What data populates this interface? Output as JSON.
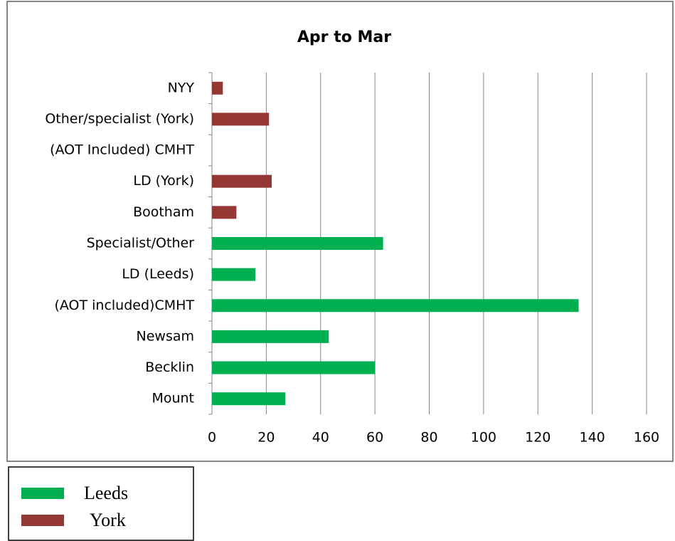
{
  "chart_data": {
    "type": "hbar",
    "title": "Apr to Mar",
    "categories": [
      "Mount",
      "Becklin",
      "Newsam",
      "(AOT included)CMHT",
      "LD (Leeds)",
      "Specialist/Other",
      "Bootham",
      "LD (York)",
      "(AOT Included)   CMHT",
      "Other/specialist (York)",
      "NYY"
    ],
    "series": [
      {
        "name": "Leeds",
        "color": "#00b050",
        "values": [
          27,
          60,
          43,
          135,
          16,
          63,
          null,
          null,
          null,
          null,
          null
        ]
      },
      {
        "name": "York",
        "color": "#953735",
        "values": [
          null,
          null,
          null,
          null,
          null,
          null,
          9,
          22,
          0,
          21,
          4
        ]
      }
    ],
    "xlim": [
      0,
      160
    ],
    "xticks": [
      0,
      20,
      40,
      60,
      80,
      100,
      120,
      140,
      160
    ],
    "grid": true
  }
}
